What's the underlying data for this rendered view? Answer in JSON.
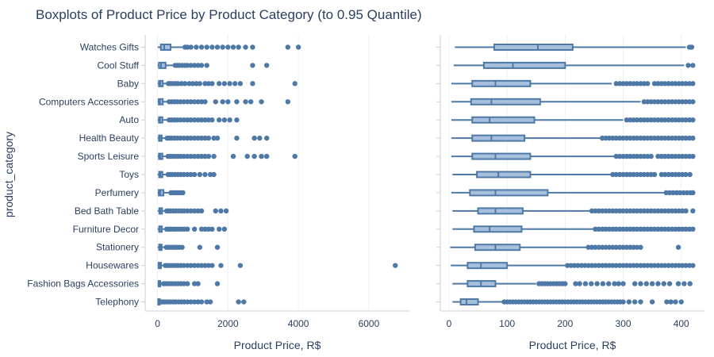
{
  "chart_data": {
    "type": "boxplot",
    "title": "Boxplots of Product Price by Product Category (to 0.95 Quantile)",
    "ylabel": "product_category",
    "colors": {
      "box_fill": "#a6bfdc",
      "line": "#4e79a7",
      "grid": "#ebf0f8",
      "axis_line": "#c9d0da",
      "text": "#2a3f5f"
    },
    "categories": [
      "Watches Gifts",
      "Cool Stuff",
      "Baby",
      "Computers Accessories",
      "Auto",
      "Health Beauty",
      "Sports Leisure",
      "Toys",
      "Perfumery",
      "Bed Bath Table",
      "Furniture Decor",
      "Stationery",
      "Housewares",
      "Fashion Bags Accessories",
      "Telephony"
    ],
    "panels": [
      {
        "id": "full",
        "xlabel": "Product Price, R$",
        "xlim": [
          -350,
          7150
        ],
        "xticks": [
          0,
          2000,
          4000,
          6000
        ],
        "xtick_labels": [
          "0",
          "2000",
          "4000",
          "6000"
        ],
        "boxes": [
          {
            "category": "Watches Gifts",
            "min": 5,
            "q1": 95,
            "median": 190,
            "q3": 370,
            "max": 760,
            "outliers": [
              780,
              850,
              950,
              1100,
              1250,
              1400,
              1550,
              1700,
              1850,
              2000,
              2150,
              2300,
              2500,
              2700,
              3700,
              4000
            ]
          },
          {
            "category": "Cool Stuff",
            "min": 5,
            "q1": 40,
            "median": 100,
            "q3": 230,
            "max": 470,
            "outliers": [
              500,
              560,
              620,
              700,
              780,
              850,
              950,
              1050,
              1150,
              1250,
              1400,
              2700,
              3100
            ]
          },
          {
            "category": "Baby",
            "min": 5,
            "q1": 40,
            "median": 80,
            "q3": 150,
            "max": 290,
            "outliers": [
              310,
              360,
              420,
              500,
              580,
              680,
              780,
              900,
              1000,
              1100,
              1200,
              1350,
              1450,
              1550,
              1750,
              1900,
              2050,
              2200,
              2350,
              2700,
              3900
            ]
          },
          {
            "category": "Computers Accessories",
            "min": 5,
            "q1": 35,
            "median": 70,
            "q3": 150,
            "max": 310,
            "outliers": [
              330,
              400,
              480,
              560,
              650,
              750,
              850,
              950,
              1050,
              1150,
              1250,
              1350,
              1650,
              1850,
              2000,
              2250,
              2500,
              2650,
              2950,
              3700
            ]
          },
          {
            "category": "Auto",
            "min": 5,
            "q1": 40,
            "median": 70,
            "q3": 140,
            "max": 300,
            "outliers": [
              330,
              400,
              480,
              560,
              650,
              750,
              850,
              950,
              1050,
              1150,
              1250,
              1350,
              1450,
              1550,
              1750,
              1900,
              2050,
              2250
            ]
          },
          {
            "category": "Health Beauty",
            "min": 5,
            "q1": 40,
            "median": 70,
            "q3": 120,
            "max": 250,
            "outliers": [
              270,
              330,
              400,
              480,
              560,
              650,
              750,
              850,
              950,
              1050,
              1150,
              1250,
              1350,
              1450,
              1600,
              1700,
              2250,
              2750,
              2900,
              3100
            ]
          },
          {
            "category": "Sports Leisure",
            "min": 5,
            "q1": 40,
            "median": 80,
            "q3": 140,
            "max": 280,
            "outliers": [
              300,
              360,
              430,
              500,
              580,
              660,
              750,
              850,
              950,
              1050,
              1150,
              1250,
              1350,
              1450,
              1600,
              2150,
              2550,
              2750,
              2950,
              3100,
              3900
            ]
          },
          {
            "category": "Toys",
            "min": 5,
            "q1": 45,
            "median": 85,
            "q3": 140,
            "max": 280,
            "outliers": [
              300,
              360,
              420,
              500,
              580,
              660,
              750,
              850,
              950,
              1050,
              1200,
              1350,
              1500,
              1600
            ]
          },
          {
            "category": "Perfumery",
            "min": 5,
            "q1": 35,
            "median": 80,
            "q3": 170,
            "max": 360,
            "outliers": [
              380,
              420,
              470,
              520,
              570,
              620,
              680,
              720
            ]
          },
          {
            "category": "Bed Bath Table",
            "min": 5,
            "q1": 50,
            "median": 80,
            "q3": 130,
            "max": 240,
            "outliers": [
              260,
              320,
              380,
              450,
              520,
              600,
              680,
              760,
              850,
              950,
              1050,
              1150,
              1250,
              1650,
              1800,
              1950
            ]
          },
          {
            "category": "Furniture Decor",
            "min": 5,
            "q1": 45,
            "median": 70,
            "q3": 125,
            "max": 240,
            "outliers": [
              260,
              320,
              380,
              450,
              520,
              600,
              680,
              760,
              850,
              1050,
              1250,
              1350,
              1450,
              1550,
              1750,
              1900
            ]
          },
          {
            "category": "Stationery",
            "min": 5,
            "q1": 45,
            "median": 80,
            "q3": 120,
            "max": 230,
            "outliers": [
              250,
              300,
              350,
              420,
              480,
              550,
              620,
              700,
              1200,
              1700
            ]
          },
          {
            "category": "Housewares",
            "min": 5,
            "q1": 30,
            "median": 55,
            "q3": 100,
            "max": 200,
            "outliers": [
              220,
              280,
              350,
              420,
              500,
              580,
              660,
              750,
              850,
              950,
              1050,
              1150,
              1250,
              1350,
              1450,
              1550,
              1800,
              2350,
              6750
            ]
          },
          {
            "category": "Fashion Bags Accessories",
            "min": 5,
            "q1": 30,
            "median": 55,
            "q3": 80,
            "max": 150,
            "outliers": [
              170,
              220,
              280,
              350,
              420,
              500,
              580,
              660,
              750,
              850,
              1050,
              1150,
              1700
            ]
          },
          {
            "category": "Telephony",
            "min": 5,
            "q1": 20,
            "median": 30,
            "q3": 50,
            "max": 90,
            "outliers": [
              110,
              150,
              200,
              260,
              320,
              380,
              450,
              520,
              600,
              680,
              760,
              850,
              950,
              1050,
              1150,
              1250,
              1400,
              1500,
              2300,
              2450
            ]
          }
        ]
      },
      {
        "id": "q95",
        "xlabel": "Product Price, R$",
        "xlim": [
          -15,
          440
        ],
        "xticks": [
          0,
          100,
          200,
          300,
          400
        ],
        "xtick_labels": [
          "0",
          "100",
          "200",
          "300",
          "400"
        ],
        "boxes": [
          {
            "category": "Watches Gifts",
            "min": 10,
            "q1": 78,
            "median": 153,
            "q3": 213,
            "max": 408,
            "outliers": [
              414,
              418
            ]
          },
          {
            "category": "Cool Stuff",
            "min": 8,
            "q1": 60,
            "median": 110,
            "q3": 200,
            "max": 405,
            "outliers": [
              412,
              420
            ]
          },
          {
            "category": "Baby",
            "min": 4,
            "q1": 40,
            "median": 80,
            "q3": 140,
            "max": 280,
            "outliers": [
              288,
              294,
              300,
              306,
              312,
              318,
              324,
              330,
              336,
              342,
              354,
              360,
              366,
              372,
              378,
              384,
              390,
              396,
              402,
              408,
              414,
              420
            ]
          },
          {
            "category": "Computers Accessories",
            "min": 4,
            "q1": 38,
            "median": 73,
            "q3": 157,
            "max": 330,
            "outliers": [
              336,
              342,
              348,
              354,
              360,
              366,
              372,
              378,
              384,
              390,
              396,
              402,
              408,
              414,
              420
            ]
          },
          {
            "category": "Auto",
            "min": 4,
            "q1": 40,
            "median": 70,
            "q3": 147,
            "max": 300,
            "outliers": [
              306,
              312,
              318,
              324,
              330,
              336,
              342,
              348,
              354,
              360,
              366,
              372,
              378,
              384,
              390,
              396,
              402,
              408,
              414,
              420
            ]
          },
          {
            "category": "Health Beauty",
            "min": 4,
            "q1": 40,
            "median": 73,
            "q3": 130,
            "max": 260,
            "outliers": [
              264,
              270,
              276,
              282,
              288,
              294,
              300,
              306,
              312,
              318,
              324,
              330,
              336,
              342,
              348,
              354,
              360,
              366,
              372,
              378,
              384,
              390,
              396,
              402,
              408,
              414,
              420
            ]
          },
          {
            "category": "Sports Leisure",
            "min": 4,
            "q1": 40,
            "median": 80,
            "q3": 140,
            "max": 285,
            "outliers": [
              288,
              294,
              300,
              306,
              312,
              318,
              324,
              330,
              336,
              342,
              348,
              360,
              366,
              372,
              378,
              384,
              390,
              396,
              402,
              408,
              414,
              420
            ]
          },
          {
            "category": "Toys",
            "min": 6,
            "q1": 48,
            "median": 85,
            "q3": 140,
            "max": 280,
            "outliers": [
              282,
              288,
              294,
              300,
              306,
              312,
              318,
              324,
              330,
              336,
              342,
              348,
              354,
              366,
              372,
              378,
              384,
              390,
              396,
              402,
              408,
              415
            ]
          },
          {
            "category": "Perfumery",
            "min": 4,
            "q1": 36,
            "median": 80,
            "q3": 170,
            "max": 370,
            "outliers": [
              374,
              380,
              386,
              392,
              398,
              404,
              410,
              416,
              420
            ]
          },
          {
            "category": "Bed Bath Table",
            "min": 6,
            "q1": 50,
            "median": 80,
            "q3": 127,
            "max": 242,
            "outliers": [
              246,
              252,
              258,
              264,
              270,
              276,
              282,
              288,
              294,
              300,
              306,
              312,
              318,
              324,
              330,
              336,
              342,
              348,
              354,
              360,
              366,
              372,
              378,
              384,
              390,
              396,
              402,
              408,
              420
            ]
          },
          {
            "category": "Furniture Decor",
            "min": 6,
            "q1": 43,
            "median": 70,
            "q3": 125,
            "max": 248,
            "outliers": [
              252,
              258,
              264,
              270,
              276,
              282,
              288,
              294,
              300,
              306,
              312,
              318,
              324,
              330,
              336,
              342,
              348,
              354,
              360,
              366,
              372,
              378,
              384,
              390,
              396,
              402,
              408,
              414,
              420
            ]
          },
          {
            "category": "Stationery",
            "min": 2,
            "q1": 45,
            "median": 80,
            "q3": 122,
            "max": 236,
            "outliers": [
              240,
              246,
              252,
              258,
              264,
              270,
              276,
              282,
              288,
              294,
              300,
              306,
              312,
              318,
              324,
              330,
              395
            ]
          },
          {
            "category": "Housewares",
            "min": 3,
            "q1": 32,
            "median": 55,
            "q3": 100,
            "max": 200,
            "outliers": [
              204,
              210,
              216,
              222,
              228,
              234,
              240,
              246,
              252,
              258,
              264,
              270,
              276,
              282,
              288,
              294,
              300,
              306,
              312,
              318,
              324,
              330,
              336,
              342,
              348,
              354,
              360,
              366,
              372,
              378,
              384,
              390,
              396,
              402,
              408,
              414,
              420
            ]
          },
          {
            "category": "Fashion Bags Accessories",
            "min": 6,
            "q1": 32,
            "median": 55,
            "q3": 80,
            "max": 150,
            "outliers": [
              155,
              160,
              165,
              170,
              175,
              180,
              185,
              190,
              195,
              200,
              218,
              225,
              235,
              245,
              255,
              265,
              275,
              285,
              292,
              300,
              320,
              330,
              340,
              350,
              360,
              370,
              380,
              395,
              405,
              415
            ]
          },
          {
            "category": "Telephony",
            "min": 6,
            "q1": 20,
            "median": 30,
            "q3": 50,
            "max": 93,
            "outliers": [
              95,
              100,
              105,
              110,
              115,
              120,
              125,
              130,
              135,
              140,
              145,
              150,
              155,
              160,
              165,
              170,
              175,
              180,
              185,
              190,
              195,
              200,
              205,
              210,
              215,
              220,
              225,
              230,
              235,
              240,
              245,
              250,
              255,
              260,
              265,
              270,
              275,
              280,
              285,
              290,
              295,
              300,
              310,
              320,
              330,
              350,
              375,
              382,
              390,
              400
            ]
          }
        ]
      }
    ]
  }
}
